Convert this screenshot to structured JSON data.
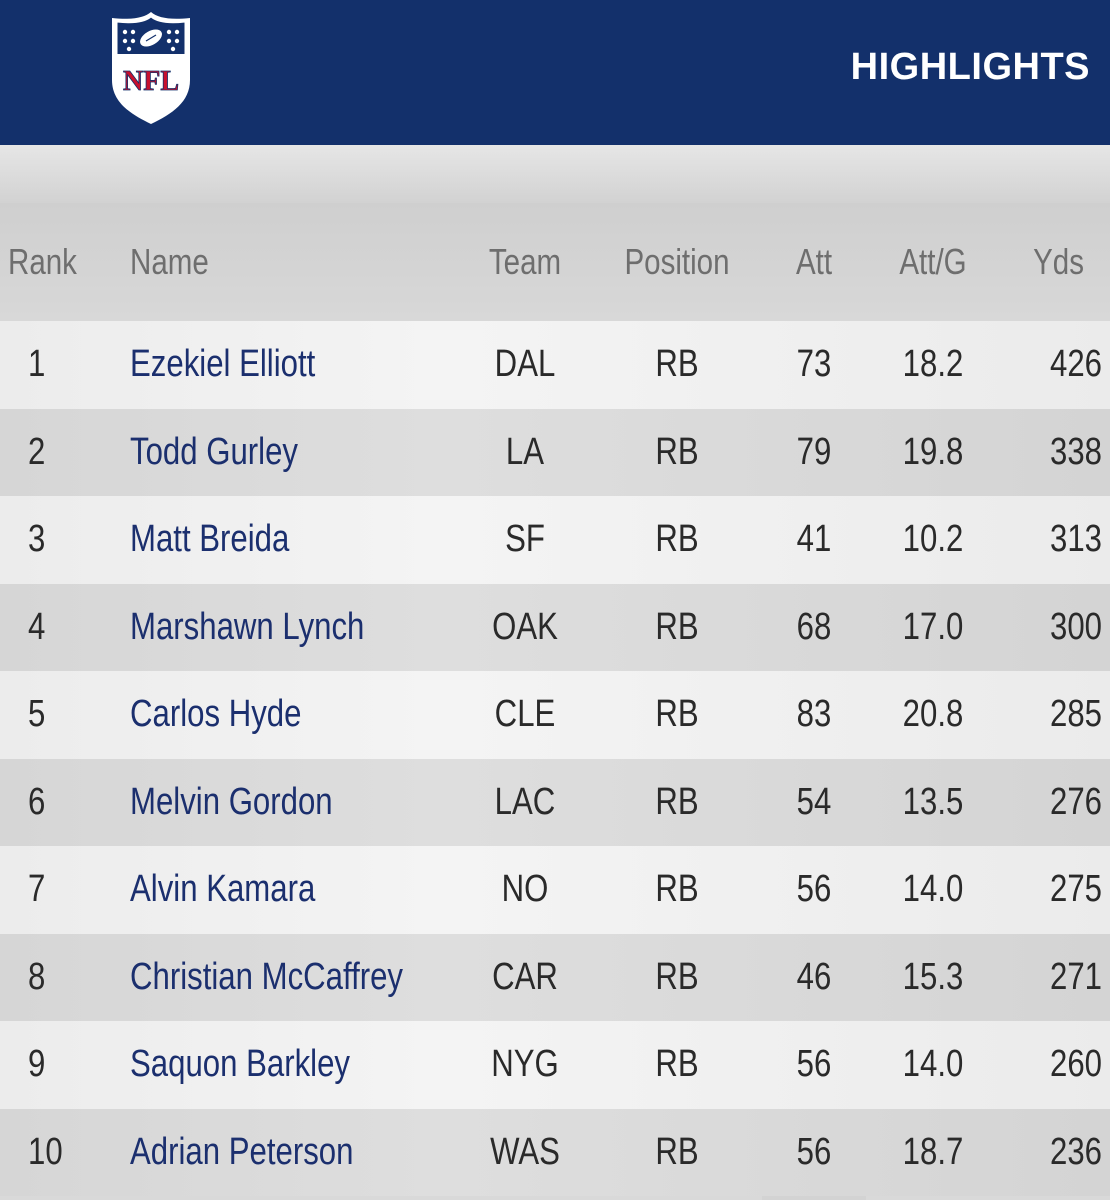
{
  "header": {
    "logo_text": "NFL",
    "title": "HIGHLIGHTS"
  },
  "colors": {
    "header_bg": "#13306b",
    "logo_red": "#c8102e",
    "name_blue": "#1b2f6e"
  },
  "table": {
    "columns": {
      "rank": "Rank",
      "name": "Name",
      "team": "Team",
      "position": "Position",
      "att": "Att",
      "att_g": "Att/G",
      "yds": "Yds"
    },
    "rows": [
      {
        "rank": "1",
        "name": "Ezekiel Elliott",
        "team": "DAL",
        "position": "RB",
        "att": "73",
        "att_g": "18.2",
        "yds": "426"
      },
      {
        "rank": "2",
        "name": "Todd Gurley",
        "team": "LA",
        "position": "RB",
        "att": "79",
        "att_g": "19.8",
        "yds": "338"
      },
      {
        "rank": "3",
        "name": "Matt Breida",
        "team": "SF",
        "position": "RB",
        "att": "41",
        "att_g": "10.2",
        "yds": "313"
      },
      {
        "rank": "4",
        "name": "Marshawn Lynch",
        "team": "OAK",
        "position": "RB",
        "att": "68",
        "att_g": "17.0",
        "yds": "300"
      },
      {
        "rank": "5",
        "name": "Carlos Hyde",
        "team": "CLE",
        "position": "RB",
        "att": "83",
        "att_g": "20.8",
        "yds": "285"
      },
      {
        "rank": "6",
        "name": "Melvin Gordon",
        "team": "LAC",
        "position": "RB",
        "att": "54",
        "att_g": "13.5",
        "yds": "276"
      },
      {
        "rank": "7",
        "name": "Alvin Kamara",
        "team": "NO",
        "position": "RB",
        "att": "56",
        "att_g": "14.0",
        "yds": "275"
      },
      {
        "rank": "8",
        "name": "Christian McCaffrey",
        "team": "CAR",
        "position": "RB",
        "att": "46",
        "att_g": "15.3",
        "yds": "271"
      },
      {
        "rank": "9",
        "name": "Saquon Barkley",
        "team": "NYG",
        "position": "RB",
        "att": "56",
        "att_g": "14.0",
        "yds": "260"
      },
      {
        "rank": "10",
        "name": "Adrian Peterson",
        "team": "WAS",
        "position": "RB",
        "att": "56",
        "att_g": "18.7",
        "yds": "236"
      }
    ]
  }
}
